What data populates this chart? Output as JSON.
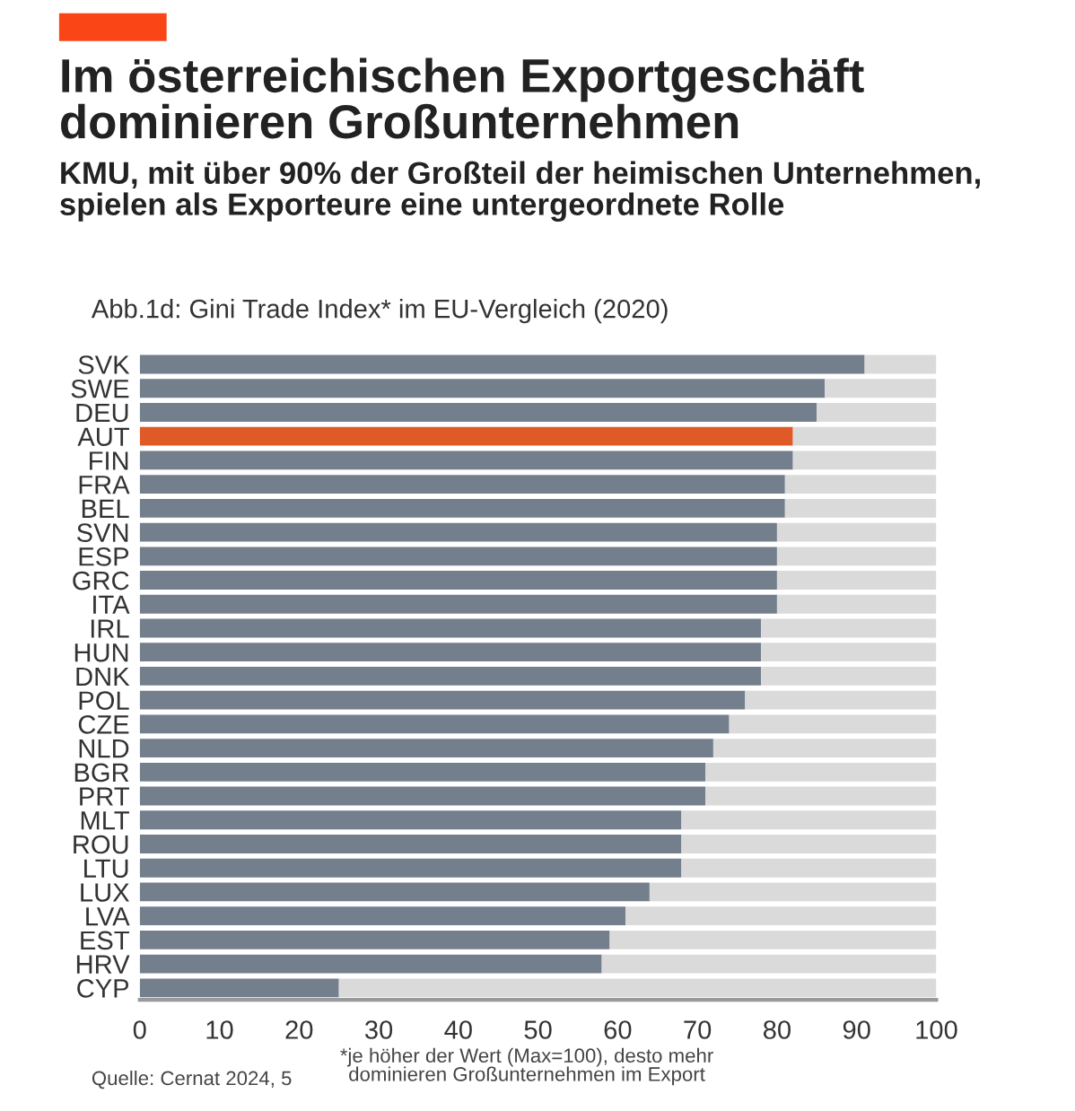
{
  "chart_data": {
    "type": "bar",
    "orientation": "horizontal",
    "stacked": true,
    "title": "Im österreichischen Exportgeschäft\ndominieren Großunternehmen",
    "subtitle": "KMU, mit über 90% der Großteil der heimischen Unternehmen,\nspielen als Exporteure eine untergeordnete Rolle",
    "annotations": [
      "Abb.1d: Gini Trade Index* im EU-Vergleich (2020)",
      "*je höher der Wert (Max=100), desto mehr\ndominieren Großunternehmen im Export",
      "Quelle: Cernat 2024, 5"
    ],
    "categories": [
      "SVK",
      "SWE",
      "DEU",
      "AUT",
      "FIN",
      "FRA",
      "BEL",
      "SVN",
      "ESP",
      "GRC",
      "ITA",
      "IRL",
      "HUN",
      "DNK",
      "POL",
      "CZE",
      "NLD",
      "BGR",
      "PRT",
      "MLT",
      "ROU",
      "LTU",
      "LUX",
      "LVA",
      "EST",
      "HRV",
      "CYP"
    ],
    "series": [
      {
        "color": "#737f8c",
        "colors": [
          "#737f8c",
          "#737f8c",
          "#737f8c",
          "#e05a27",
          "#737f8c",
          "#737f8c",
          "#737f8c",
          "#737f8c",
          "#737f8c",
          "#737f8c",
          "#737f8c",
          "#737f8c",
          "#737f8c",
          "#737f8c",
          "#737f8c",
          "#737f8c",
          "#737f8c",
          "#737f8c",
          "#737f8c",
          "#737f8c",
          "#737f8c",
          "#737f8c",
          "#737f8c",
          "#737f8c",
          "#737f8c",
          "#737f8c",
          "#737f8c"
        ],
        "values": [
          91,
          86,
          85,
          82,
          82,
          81,
          81,
          80,
          80,
          80,
          80,
          78,
          78,
          78,
          76,
          74,
          72,
          71,
          71,
          68,
          68,
          68,
          64,
          61,
          59,
          58,
          25
        ]
      },
      {
        "color": "#dadada",
        "values": [
          9,
          14,
          15,
          18,
          18,
          19,
          19,
          20,
          20,
          20,
          20,
          22,
          22,
          22,
          24,
          26,
          28,
          29,
          29,
          32,
          32,
          32,
          36,
          39,
          41,
          42,
          75
        ]
      }
    ],
    "xlim": [
      0,
      100
    ],
    "xticks": [
      0,
      10,
      20,
      30,
      40,
      50,
      60,
      70,
      80,
      90,
      100
    ],
    "grid": false,
    "legend": false
  }
}
